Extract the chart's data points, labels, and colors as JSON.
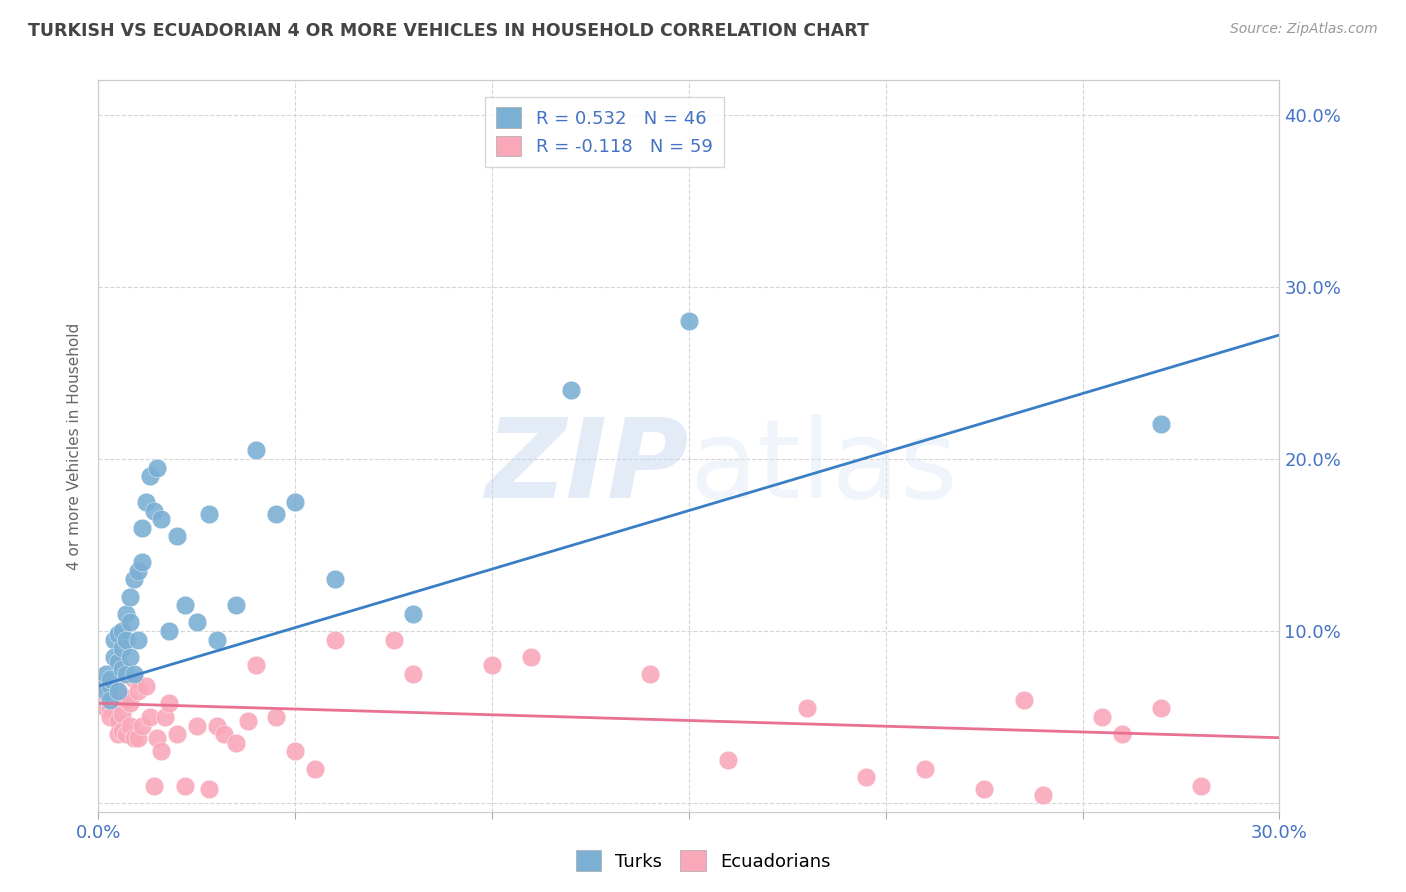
{
  "title": "TURKISH VS ECUADORIAN 4 OR MORE VEHICLES IN HOUSEHOLD CORRELATION CHART",
  "source": "Source: ZipAtlas.com",
  "ylabel_label": "4 or more Vehicles in Household",
  "legend_entries": [
    {
      "label": "R = 0.532   N = 46",
      "color": "#7BAFD4"
    },
    {
      "label": "R = -0.118   N = 59",
      "color": "#F9A8BA"
    }
  ],
  "legend_bottom": [
    "Turks",
    "Ecuadorians"
  ],
  "turks_color": "#7BAFD4",
  "ecuadorians_color": "#F9A8BA",
  "trendline_turks_color": "#3A7EC6",
  "trendline_ecu_color": "#E87090",
  "xlim": [
    0.0,
    0.3
  ],
  "ylim": [
    -0.005,
    0.42
  ],
  "xticks": [
    0.0,
    0.05,
    0.1,
    0.15,
    0.2,
    0.25,
    0.3
  ],
  "yticks": [
    0.0,
    0.1,
    0.2,
    0.3,
    0.4
  ],
  "xtick_labels": [
    "0.0%",
    "",
    "",
    "",
    "",
    "",
    "30.0%"
  ],
  "ytick_labels_right": [
    "",
    "10.0%",
    "20.0%",
    "30.0%",
    "40.0%"
  ],
  "turks_x": [
    0.001,
    0.002,
    0.002,
    0.003,
    0.003,
    0.003,
    0.004,
    0.004,
    0.005,
    0.005,
    0.005,
    0.006,
    0.006,
    0.006,
    0.007,
    0.007,
    0.007,
    0.008,
    0.008,
    0.008,
    0.009,
    0.009,
    0.01,
    0.01,
    0.011,
    0.011,
    0.012,
    0.013,
    0.014,
    0.015,
    0.016,
    0.018,
    0.02,
    0.022,
    0.025,
    0.028,
    0.03,
    0.035,
    0.04,
    0.045,
    0.05,
    0.06,
    0.08,
    0.12,
    0.15,
    0.27
  ],
  "turks_y": [
    0.07,
    0.075,
    0.065,
    0.068,
    0.072,
    0.06,
    0.095,
    0.085,
    0.082,
    0.098,
    0.065,
    0.1,
    0.09,
    0.078,
    0.11,
    0.095,
    0.075,
    0.12,
    0.105,
    0.085,
    0.13,
    0.075,
    0.135,
    0.095,
    0.16,
    0.14,
    0.175,
    0.19,
    0.17,
    0.195,
    0.165,
    0.1,
    0.155,
    0.115,
    0.105,
    0.168,
    0.095,
    0.115,
    0.205,
    0.168,
    0.175,
    0.13,
    0.11,
    0.24,
    0.28,
    0.22
  ],
  "ecuadorians_x": [
    0.001,
    0.002,
    0.002,
    0.003,
    0.003,
    0.003,
    0.004,
    0.004,
    0.005,
    0.005,
    0.005,
    0.006,
    0.006,
    0.006,
    0.007,
    0.007,
    0.008,
    0.008,
    0.009,
    0.009,
    0.01,
    0.01,
    0.011,
    0.012,
    0.013,
    0.014,
    0.015,
    0.016,
    0.017,
    0.018,
    0.02,
    0.022,
    0.025,
    0.028,
    0.03,
    0.032,
    0.035,
    0.038,
    0.04,
    0.045,
    0.05,
    0.055,
    0.06,
    0.075,
    0.08,
    0.1,
    0.11,
    0.14,
    0.16,
    0.18,
    0.195,
    0.21,
    0.225,
    0.235,
    0.24,
    0.255,
    0.26,
    0.27,
    0.28
  ],
  "ecuadorians_y": [
    0.068,
    0.062,
    0.055,
    0.065,
    0.055,
    0.05,
    0.07,
    0.06,
    0.058,
    0.048,
    0.04,
    0.062,
    0.052,
    0.042,
    0.06,
    0.04,
    0.058,
    0.045,
    0.072,
    0.038,
    0.065,
    0.038,
    0.045,
    0.068,
    0.05,
    0.01,
    0.038,
    0.03,
    0.05,
    0.058,
    0.04,
    0.01,
    0.045,
    0.008,
    0.045,
    0.04,
    0.035,
    0.048,
    0.08,
    0.05,
    0.03,
    0.02,
    0.095,
    0.095,
    0.075,
    0.08,
    0.085,
    0.075,
    0.025,
    0.055,
    0.015,
    0.02,
    0.008,
    0.06,
    0.005,
    0.05,
    0.04,
    0.055,
    0.01
  ],
  "turk_trend_x": [
    0.0,
    0.3
  ],
  "turk_trend_y": [
    0.068,
    0.272
  ],
  "ecu_trend_x": [
    0.0,
    0.3
  ],
  "ecu_trend_y": [
    0.058,
    0.038
  ],
  "background_color": "#FFFFFF",
  "grid_color": "#CCCCCC",
  "title_color": "#444444",
  "text_color": "#4472C4"
}
